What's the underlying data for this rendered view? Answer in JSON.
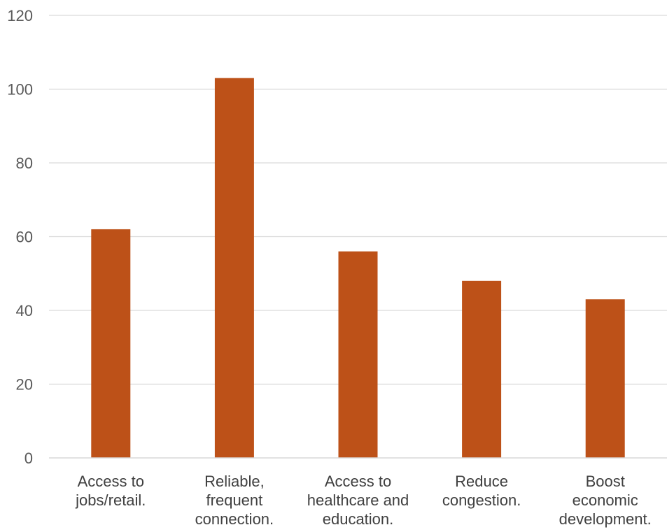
{
  "chart_data": {
    "type": "bar",
    "categories": [
      [
        "Access to",
        "jobs/retail."
      ],
      [
        "Reliable,",
        "frequent",
        "connection."
      ],
      [
        "Access to",
        "healthcare and",
        "education."
      ],
      [
        "Reduce",
        "congestion."
      ],
      [
        "Boost",
        "economic",
        "development."
      ]
    ],
    "values": [
      62,
      103,
      56,
      48,
      43
    ],
    "ylim": [
      0,
      120
    ],
    "yticks": [
      0,
      20,
      40,
      60,
      80,
      100,
      120
    ],
    "title": "",
    "xlabel": "",
    "ylabel": "",
    "grid": true,
    "legend": "none",
    "colors": {
      "bar": "#bd5118",
      "grid": "#d9d9d9",
      "tick_text": "#595959"
    }
  }
}
